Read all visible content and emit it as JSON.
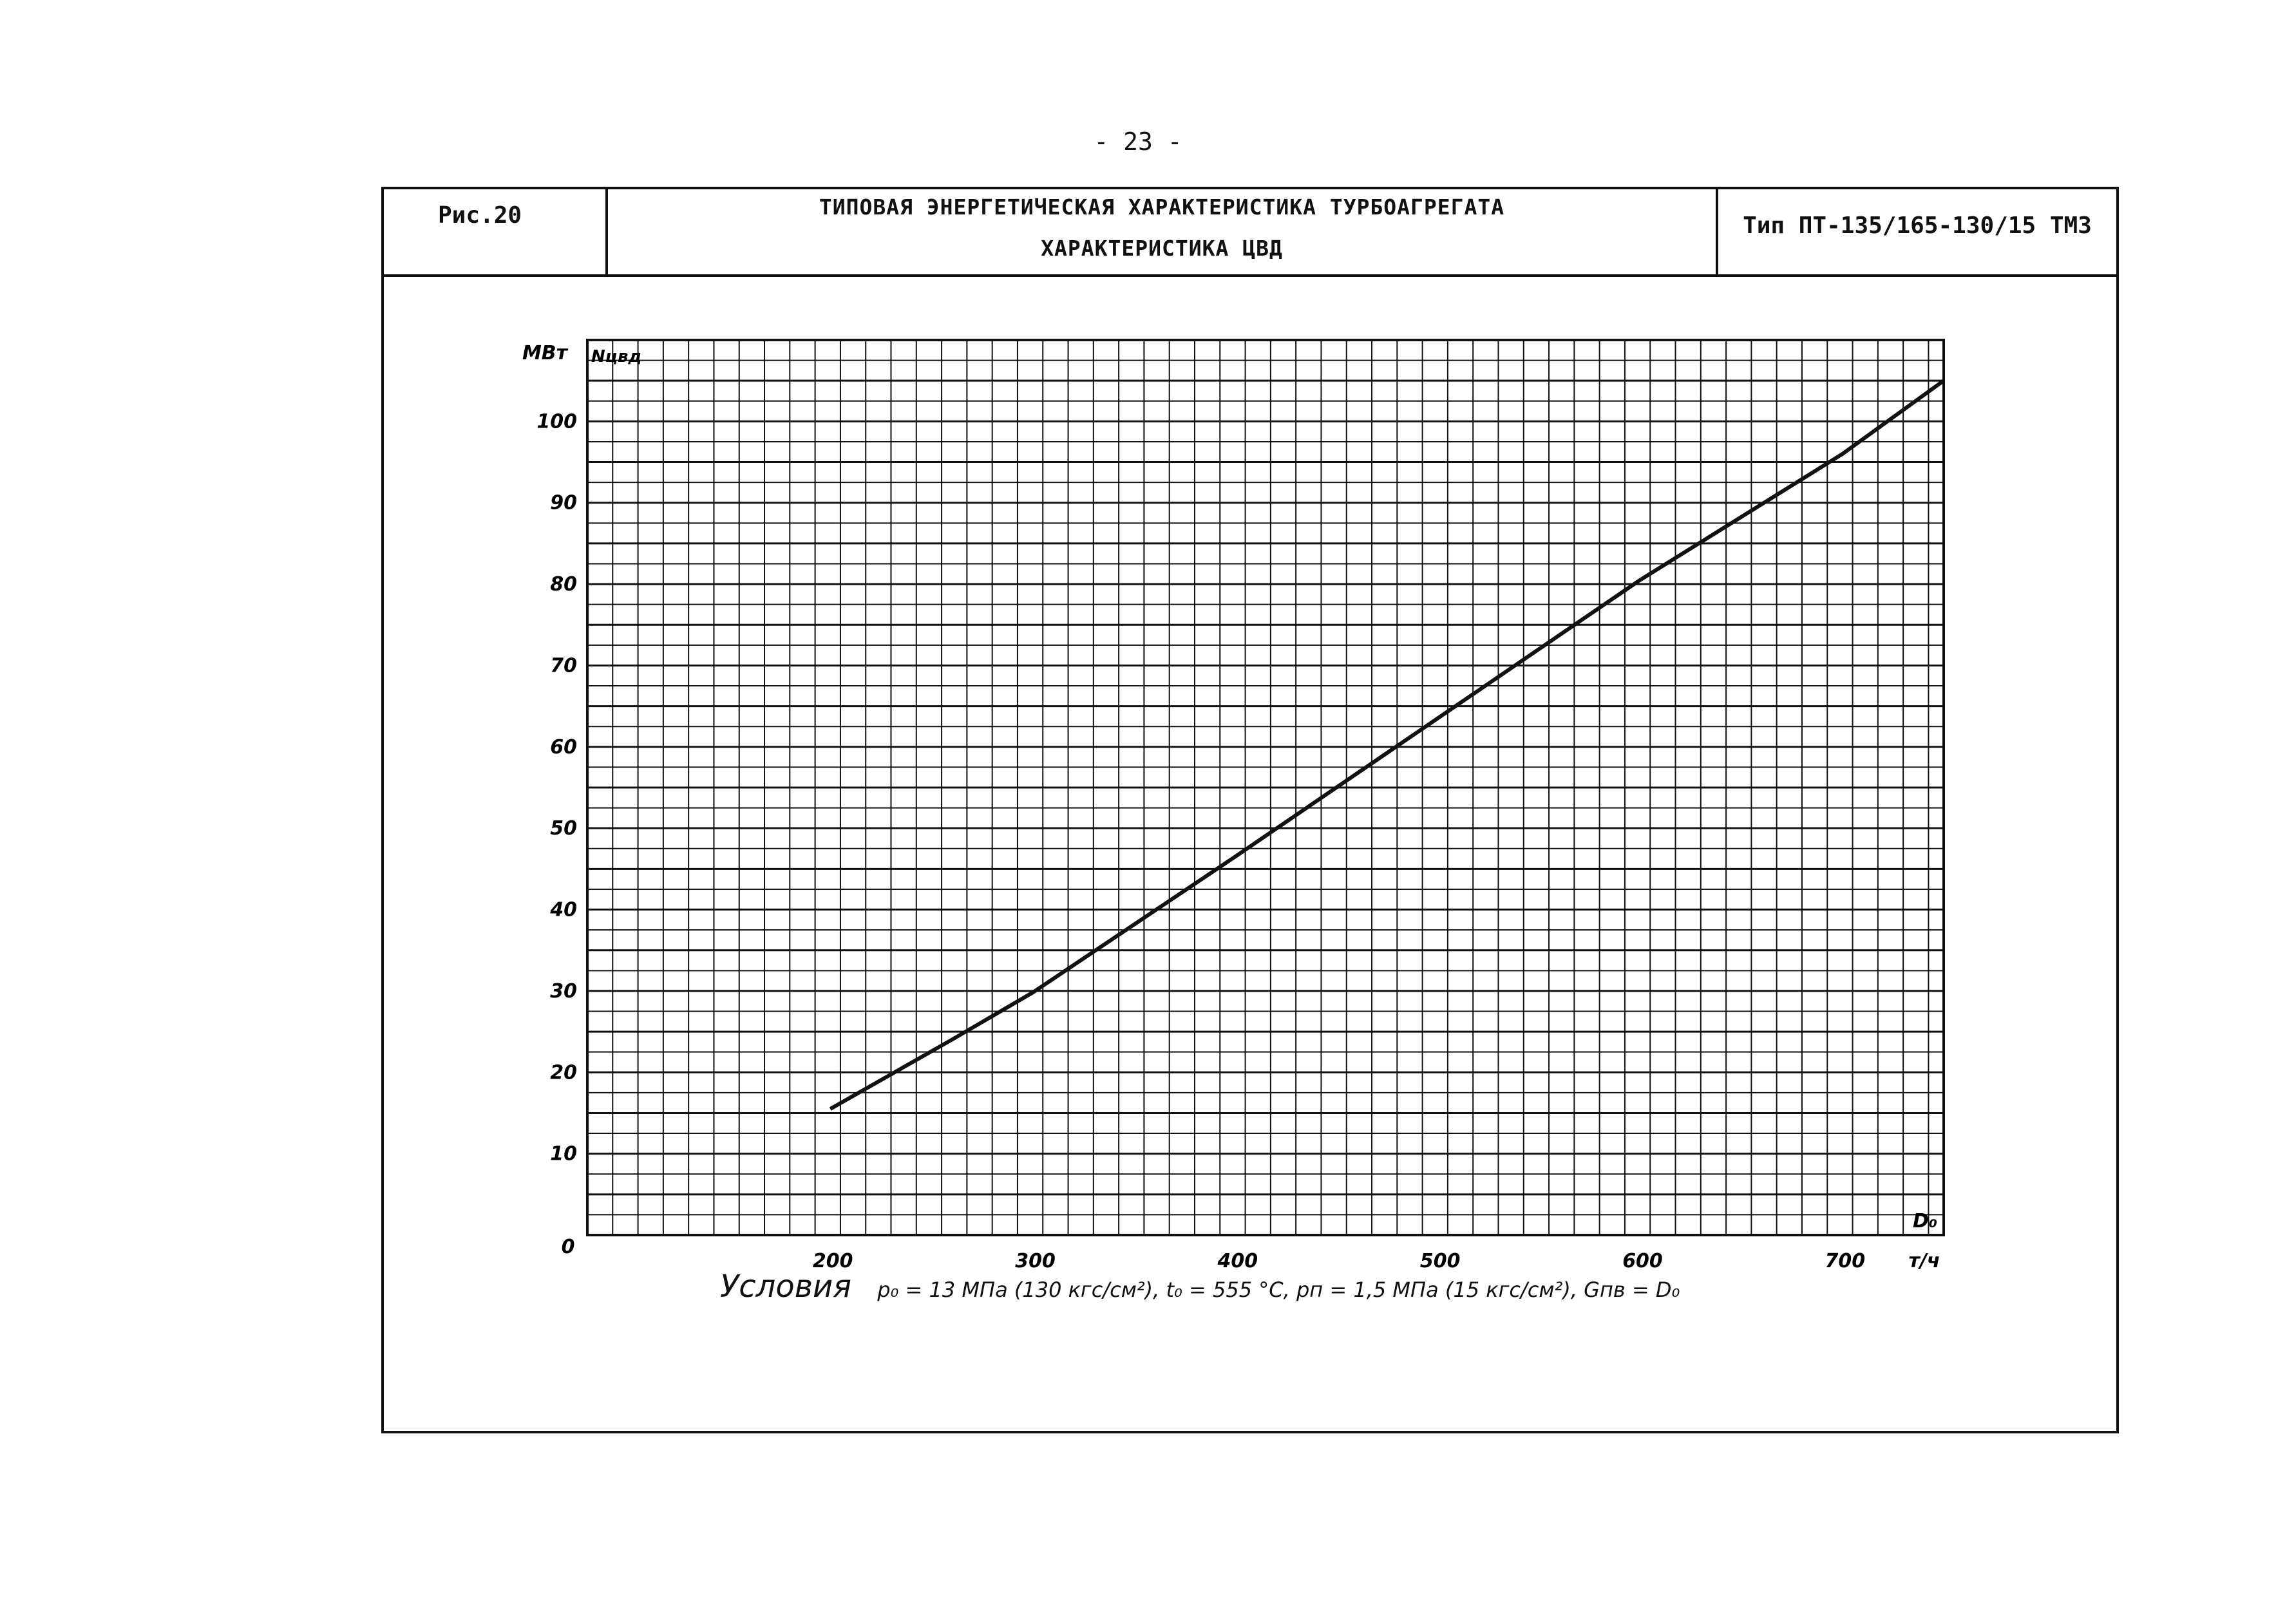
{
  "page": {
    "number": "- 23 -"
  },
  "header": {
    "figure_label": "Рис.20",
    "title_line1": "ТИПОВАЯ ЭНЕРГЕТИЧЕСКАЯ ХАРАКТЕРИСТИКА ТУРБОАГРЕГАТА",
    "title_line2": "ХАРАКТЕРИСТИКА ЦВД",
    "type_label": "Тип ПТ-135/165-130/15 ТМЗ"
  },
  "conditions": {
    "title": "Условия",
    "text": "p₀ = 13 МПа (130 кгс/см²),  t₀ = 555 °С,  pп = 1,5 МПа (15 кгс/см²),  Gпв = D₀"
  },
  "chart_data": {
    "type": "line",
    "y_unit": "МВт",
    "y_symbol": "Nцвд",
    "x_symbol": "D₀",
    "x_unit": "т/ч",
    "origin_label": "0",
    "xlim": [
      80,
      750
    ],
    "ylim": [
      0,
      110
    ],
    "x_ticks": [
      {
        "value": 200,
        "label": "200"
      },
      {
        "value": 300,
        "label": "300"
      },
      {
        "value": 400,
        "label": "400"
      },
      {
        "value": 500,
        "label": "500"
      },
      {
        "value": 600,
        "label": "600"
      },
      {
        "value": 700,
        "label": "700"
      }
    ],
    "y_ticks": [
      {
        "value": 10,
        "label": "10"
      },
      {
        "value": 20,
        "label": "20"
      },
      {
        "value": 30,
        "label": "30"
      },
      {
        "value": 40,
        "label": "40"
      },
      {
        "value": 50,
        "label": "50"
      },
      {
        "value": 60,
        "label": "60"
      },
      {
        "value": 70,
        "label": "70"
      },
      {
        "value": 80,
        "label": "80"
      },
      {
        "value": 90,
        "label": "90"
      },
      {
        "value": 100,
        "label": "100"
      }
    ],
    "grid": true,
    "series": [
      {
        "points": [
          [
            200,
            15.5
          ],
          [
            260,
            24
          ],
          [
            300,
            29.8
          ],
          [
            400,
            46.5
          ],
          [
            500,
            63.5
          ],
          [
            600,
            80.5
          ],
          [
            700,
            96
          ],
          [
            750,
            105
          ]
        ]
      }
    ]
  }
}
